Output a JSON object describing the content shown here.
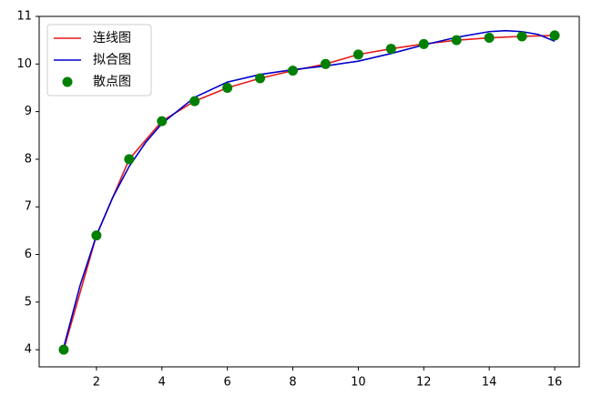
{
  "chart_data": {
    "type": "line",
    "xlim": [
      0.25,
      16.75
    ],
    "xticks": [
      2,
      4,
      6,
      8,
      10,
      12,
      14,
      16
    ],
    "ylim": [
      3.64,
      11.0
    ],
    "yticks": [
      4,
      5,
      6,
      7,
      8,
      9,
      10,
      11
    ],
    "legend": "upper left",
    "series": [
      {
        "name": "连线图",
        "type": "line",
        "color": "#e41a1c",
        "x": [
          1,
          2,
          3,
          4,
          5,
          6,
          7,
          8,
          9,
          10,
          11,
          12,
          13,
          14,
          15,
          16
        ],
        "values": [
          4.0,
          6.4,
          8.0,
          8.8,
          9.22,
          9.5,
          9.7,
          9.86,
          10.0,
          10.2,
          10.32,
          10.42,
          10.5,
          10.55,
          10.58,
          10.6
        ]
      },
      {
        "name": "拟合图",
        "type": "line",
        "color": "#0000cc",
        "x": [
          1,
          1.5,
          2,
          2.5,
          3,
          3.5,
          4,
          5,
          6,
          7,
          8,
          9,
          10,
          11,
          12,
          13,
          14,
          14.5,
          15,
          15.5,
          16
        ],
        "values": [
          4.05,
          5.35,
          6.4,
          7.2,
          7.85,
          8.35,
          8.75,
          9.3,
          9.62,
          9.78,
          9.88,
          9.96,
          10.06,
          10.22,
          10.4,
          10.56,
          10.68,
          10.7,
          10.68,
          10.62,
          10.48
        ]
      },
      {
        "name": "散点图",
        "type": "scatter",
        "color": "#008000",
        "x": [
          1,
          2,
          3,
          4,
          5,
          6,
          7,
          8,
          9,
          10,
          11,
          12,
          13,
          14,
          15,
          16
        ],
        "values": [
          4.0,
          6.4,
          8.0,
          8.8,
          9.22,
          9.5,
          9.7,
          9.86,
          10.0,
          10.2,
          10.32,
          10.42,
          10.5,
          10.55,
          10.58,
          10.6
        ]
      }
    ]
  }
}
